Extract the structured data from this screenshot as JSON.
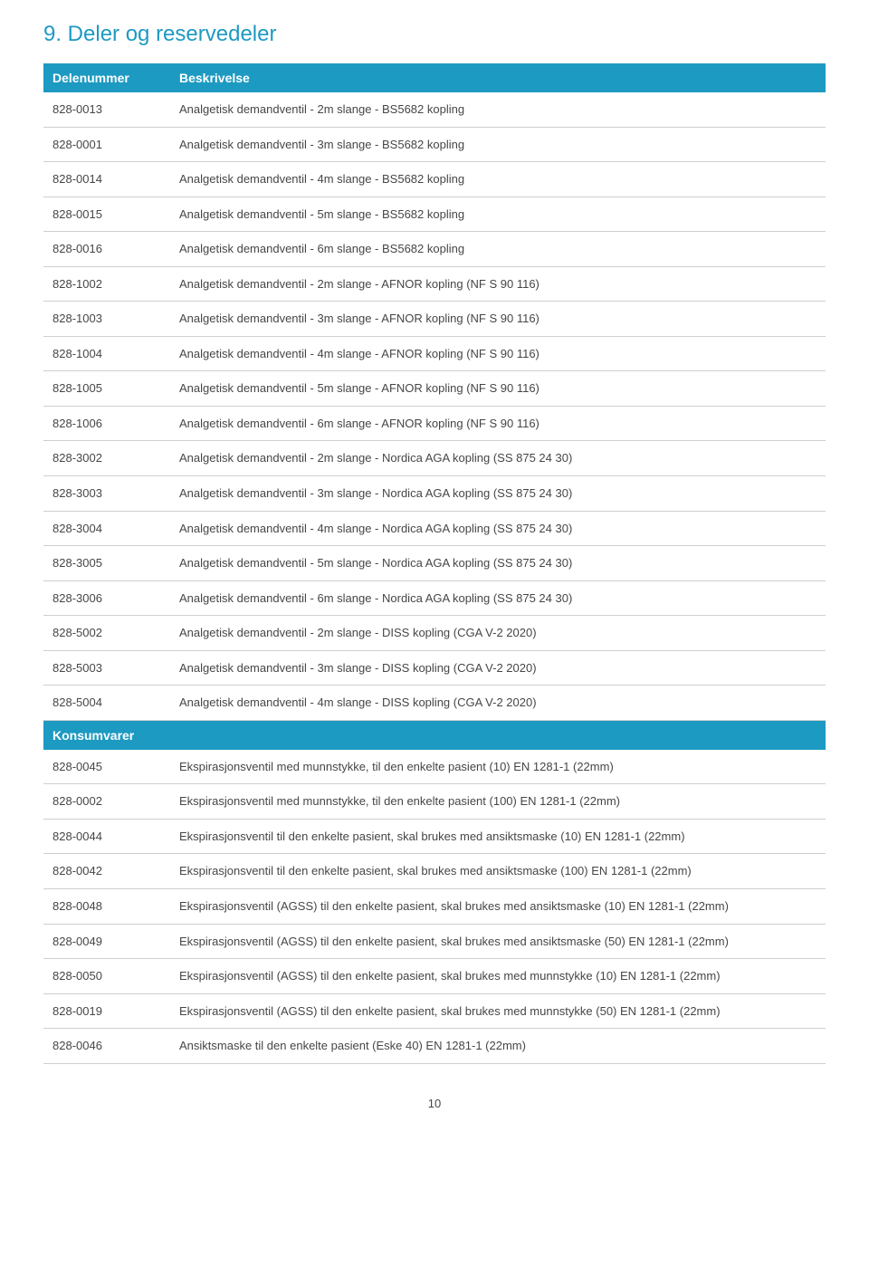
{
  "section": {
    "title": "9.  Deler og reservedeler"
  },
  "colors": {
    "accent": "#1d9ac2",
    "text": "#464646",
    "row_border": "#cfcfcf",
    "background": "#ffffff"
  },
  "table": {
    "header": {
      "partnum": "Delenummer",
      "description": "Beskrivelse"
    },
    "rows": [
      {
        "pn": "828-0013",
        "desc": "Analgetisk demandventil - 2m slange - BS5682 kopling"
      },
      {
        "pn": "828-0001",
        "desc": "Analgetisk demandventil - 3m slange - BS5682 kopling"
      },
      {
        "pn": "828-0014",
        "desc": "Analgetisk demandventil - 4m slange - BS5682 kopling"
      },
      {
        "pn": "828-0015",
        "desc": "Analgetisk demandventil - 5m slange - BS5682 kopling"
      },
      {
        "pn": "828-0016",
        "desc": "Analgetisk demandventil - 6m slange - BS5682 kopling"
      },
      {
        "pn": "828-1002",
        "desc": "Analgetisk demandventil - 2m slange - AFNOR kopling  (NF S 90 116)"
      },
      {
        "pn": "828-1003",
        "desc": "Analgetisk demandventil - 3m slange - AFNOR kopling  (NF S 90 116)"
      },
      {
        "pn": "828-1004",
        "desc": "Analgetisk demandventil - 4m slange - AFNOR kopling  (NF S 90 116)"
      },
      {
        "pn": "828-1005",
        "desc": "Analgetisk demandventil - 5m slange - AFNOR kopling  (NF S 90 116)"
      },
      {
        "pn": "828-1006",
        "desc": "Analgetisk demandventil - 6m slange - AFNOR kopling  (NF S 90 116)"
      },
      {
        "pn": "828-3002",
        "desc": "Analgetisk demandventil - 2m slange - Nordica AGA kopling  (SS 875 24 30)"
      },
      {
        "pn": "828-3003",
        "desc": "Analgetisk demandventil - 3m slange - Nordica AGA kopling  (SS 875 24 30)"
      },
      {
        "pn": "828-3004",
        "desc": "Analgetisk demandventil - 4m slange - Nordica AGA kopling  (SS 875 24 30)"
      },
      {
        "pn": "828-3005",
        "desc": "Analgetisk demandventil - 5m slange - Nordica AGA kopling  (SS 875 24 30)"
      },
      {
        "pn": "828-3006",
        "desc": "Analgetisk demandventil - 6m slange - Nordica AGA kopling  (SS 875 24 30)"
      },
      {
        "pn": "828-5002",
        "desc": "Analgetisk demandventil - 2m slange - DISS kopling  (CGA V-2 2020)"
      },
      {
        "pn": "828-5003",
        "desc": "Analgetisk demandventil - 3m slange - DISS kopling  (CGA V-2 2020)"
      },
      {
        "pn": "828-5004",
        "desc": "Analgetisk demandventil - 4m slange - DISS kopling  (CGA V-2 2020)"
      }
    ],
    "subheader1": {
      "label": "Konsumvarer"
    },
    "rows2": [
      {
        "pn": "828-0045",
        "desc": "Ekspirasjonsventil med munnstykke, til den enkelte pasient (10)   EN 1281-1 (22mm)"
      },
      {
        "pn": "828-0002",
        "desc": "Ekspirasjonsventil med munnstykke, til den enkelte pasient (100)   EN 1281-1 (22mm)"
      },
      {
        "pn": "828-0044",
        "desc": "Ekspirasjonsventil til den enkelte pasient, skal brukes med ansiktsmaske (10)   EN 1281-1 (22mm)"
      },
      {
        "pn": "828-0042",
        "desc": "Ekspirasjonsventil til den enkelte pasient, skal brukes med ansiktsmaske (100)   EN 1281-1 (22mm)"
      },
      {
        "pn": "828-0048",
        "desc": "Ekspirasjonsventil (AGSS) til den enkelte pasient, skal brukes med ansiktsmaske (10)   EN 1281-1 (22mm)"
      },
      {
        "pn": "828-0049",
        "desc": "Ekspirasjonsventil (AGSS) til den enkelte pasient, skal brukes med ansiktsmaske (50)   EN 1281-1 (22mm)"
      },
      {
        "pn": "828-0050",
        "desc": "Ekspirasjonsventil (AGSS) til den enkelte pasient, skal brukes med munnstykke (10)   EN 1281-1 (22mm)"
      },
      {
        "pn": "828-0019",
        "desc": "Ekspirasjonsventil (AGSS) til den enkelte pasient, skal brukes med munnstykke (50)   EN 1281-1 (22mm)"
      },
      {
        "pn": "828-0046",
        "desc": "Ansiktsmaske til den enkelte pasient (Eske 40)   EN 1281-1 (22mm)"
      }
    ]
  },
  "page_number": "10"
}
